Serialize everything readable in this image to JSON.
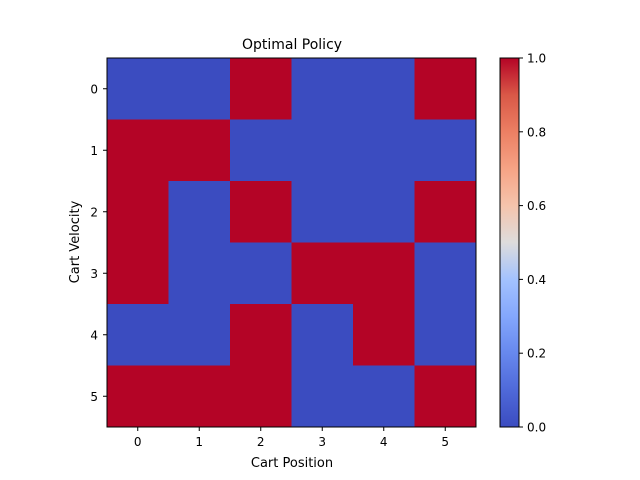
{
  "chart_data": {
    "type": "heatmap",
    "title": "Optimal Policy",
    "xlabel": "Cart Position",
    "ylabel": "Cart Velocity",
    "x_categories": [
      "0",
      "1",
      "2",
      "3",
      "4",
      "5"
    ],
    "y_categories": [
      "0",
      "1",
      "2",
      "3",
      "4",
      "5"
    ],
    "values": [
      [
        0,
        0,
        1,
        0,
        0,
        1
      ],
      [
        1,
        1,
        0,
        0,
        0,
        0
      ],
      [
        1,
        0,
        1,
        0,
        0,
        1
      ],
      [
        1,
        0,
        0,
        1,
        1,
        0
      ],
      [
        0,
        0,
        1,
        0,
        1,
        0
      ],
      [
        1,
        1,
        1,
        0,
        0,
        1
      ]
    ],
    "colormap": "coolwarm",
    "color_low": "#3b4cc0",
    "color_high": "#b40426",
    "colorbar": {
      "range": [
        0.0,
        1.0
      ],
      "ticks": [
        "0.0",
        "0.2",
        "0.4",
        "0.6",
        "0.8",
        "1.0"
      ]
    },
    "grid": false
  }
}
